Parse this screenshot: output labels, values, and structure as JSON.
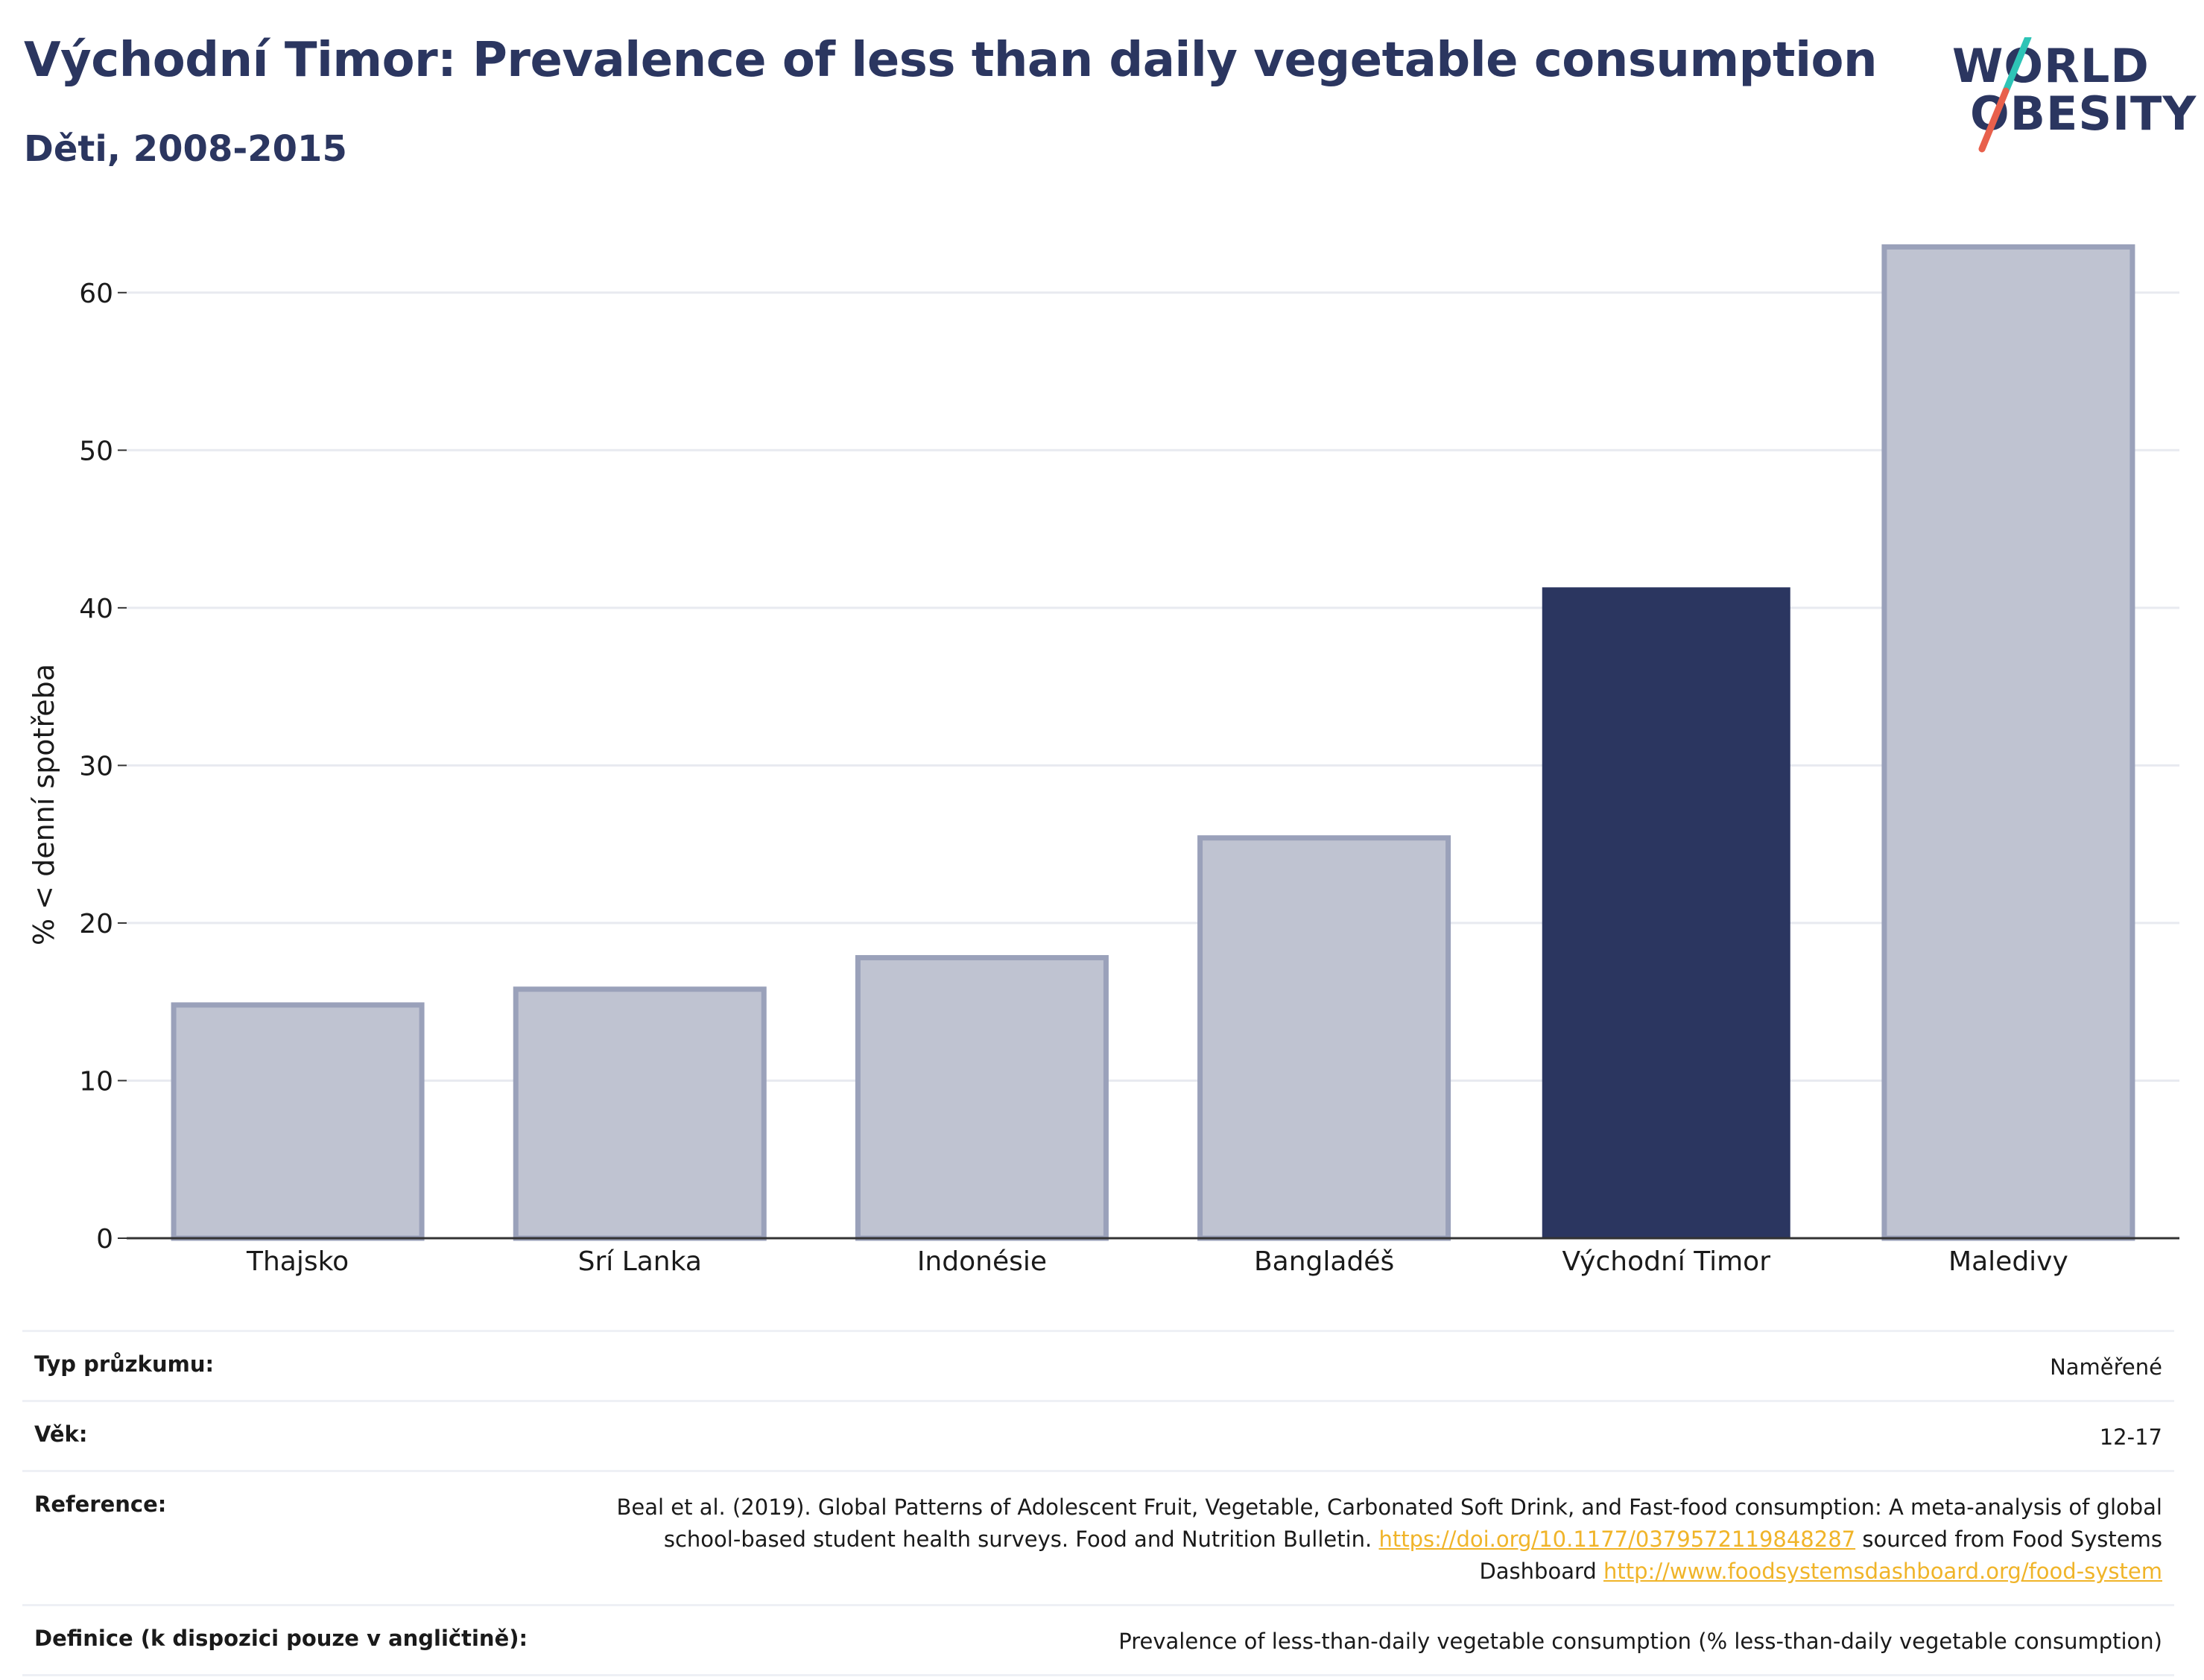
{
  "header": {
    "title": "Východní Timor: Prevalence of less than daily vegetable consumption",
    "subtitle": "Děti, 2008-2015"
  },
  "logo": {
    "line1": "WORLD",
    "line2": "OBESITY",
    "colors": {
      "text": "#2b3660",
      "slash_top": "#2ec4b6",
      "slash_bottom": "#e8604c"
    }
  },
  "chart_data": {
    "type": "bar",
    "title": "Východní Timor: Prevalence of less than daily vegetable consumption",
    "subtitle": "Děti, 2008-2015",
    "xlabel": "",
    "ylabel": "% < denní spotřeba",
    "categories": [
      "Thajsko",
      "Srí Lanka",
      "Indonésie",
      "Bangladéš",
      "Východní Timor",
      "Maledivy"
    ],
    "values": [
      14.8,
      15.8,
      17.8,
      25.4,
      41.3,
      62.9
    ],
    "highlight": "Východní Timor",
    "ylim": [
      0,
      65
    ],
    "yticks": [
      0,
      10,
      20,
      30,
      40,
      50,
      60
    ],
    "grid": true,
    "colors": {
      "bar": "#bfc3d1",
      "bar_border": "#9aa1ba",
      "highlight": "#2b3660",
      "grid": "#e8eaf0",
      "axis": "#333333"
    }
  },
  "info_table": {
    "survey_type_label": "Typ průzkumu:",
    "survey_type_value": "Naměřené",
    "age_label": "Věk:",
    "age_value": "12-17",
    "reference_label": "Reference:",
    "reference_text": "Beal et al. (2019). Global Patterns of Adolescent Fruit, Vegetable, Carbonated Soft Drink, and Fast-food consumption: A meta-analysis of global school-based student health surveys. Food and Nutrition Bulletin.",
    "reference_link1": "https://doi.org/10.1177/0379572119848287",
    "reference_mid": "sourced from Food Systems Dashboard",
    "reference_link2": "http://www.foodsystemsdashboard.org/food-system",
    "definition_label": "Definice (k dispozici pouze v angličtině):",
    "definition_value": "Prevalence of less-than-daily vegetable consumption (% less-than-daily vegetable consumption)",
    "link_color": "#f0b429"
  }
}
